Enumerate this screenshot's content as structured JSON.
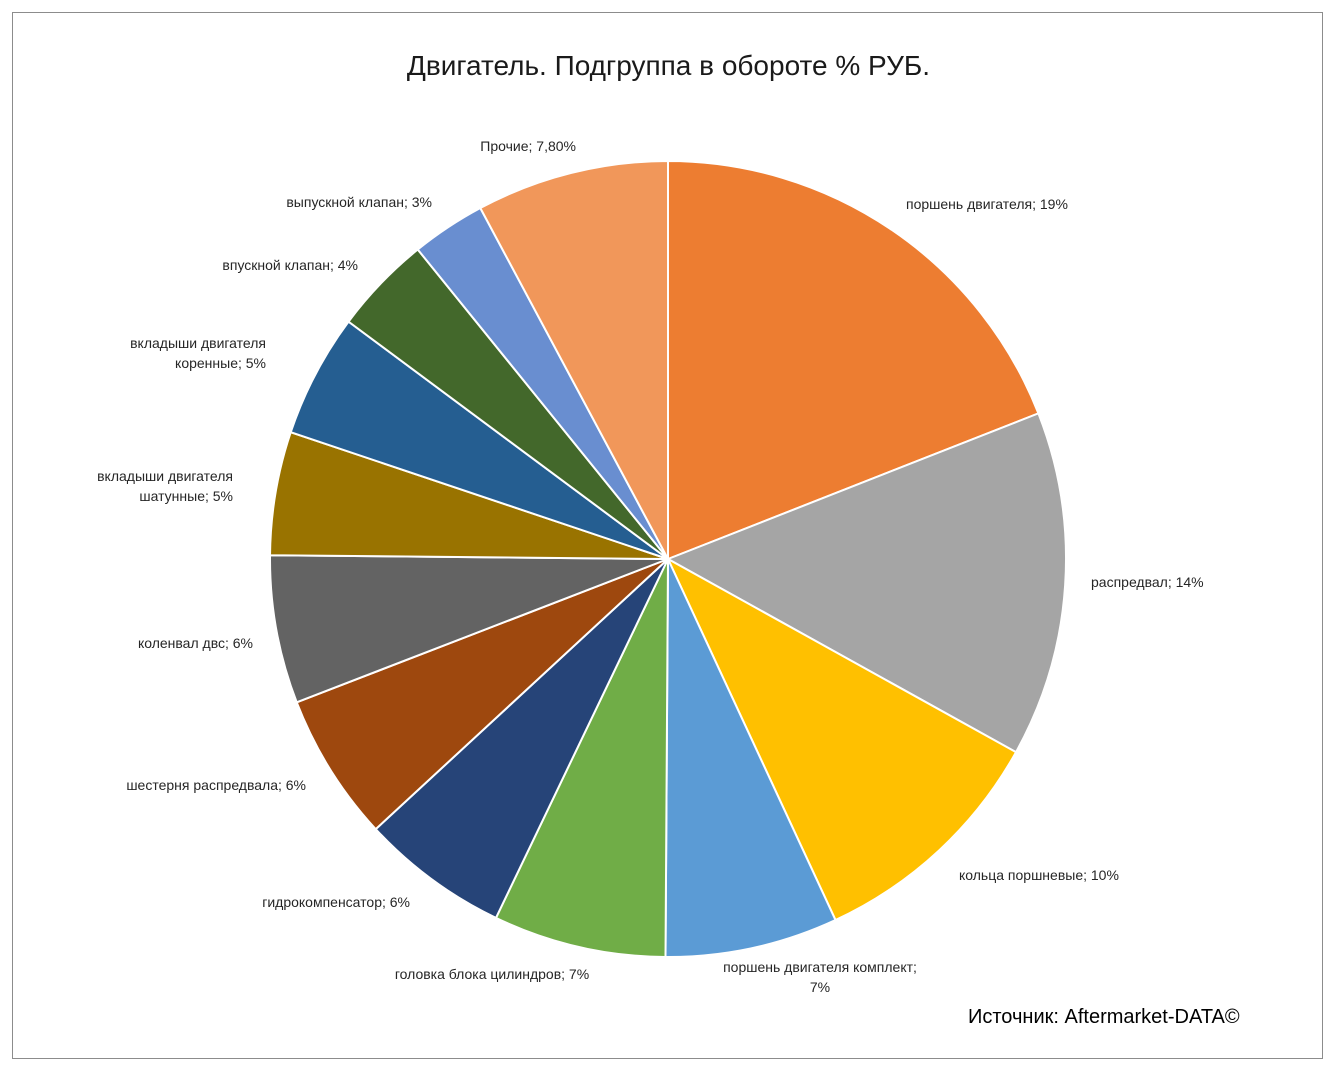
{
  "chart_data": {
    "type": "pie",
    "title": "Двигатель. Подгруппа в обороте % РУБ.",
    "source": "Источник: Aftermarket-DATA©",
    "slices": [
      {
        "name": "поршень двигателя",
        "value": 19,
        "label_lines": [
          "поршень двигателя; 19%"
        ],
        "color": "#ED7D31"
      },
      {
        "name": "распредвал",
        "value": 14,
        "label_lines": [
          "распредвал; 14%"
        ],
        "color": "#A5A5A5"
      },
      {
        "name": "кольца поршневые",
        "value": 10,
        "label_lines": [
          "кольца поршневые; 10%"
        ],
        "color": "#FFC000"
      },
      {
        "name": "поршень двигателя комплект",
        "value": 7,
        "label_lines": [
          "поршень двигателя комплект;",
          "7%"
        ],
        "color": "#5B9BD5"
      },
      {
        "name": "головка блока цилиндров",
        "value": 7,
        "label_lines": [
          "головка блока цилиндров; 7%"
        ],
        "color": "#70AD47"
      },
      {
        "name": "гидрокомпенсатор",
        "value": 6,
        "label_lines": [
          "гидрокомпенсатор; 6%"
        ],
        "color": "#264478"
      },
      {
        "name": "шестерня распредвала",
        "value": 6,
        "label_lines": [
          "шестерня распредвала; 6%"
        ],
        "color": "#9E480E"
      },
      {
        "name": "коленвал двс",
        "value": 6,
        "label_lines": [
          "коленвал двс; 6%"
        ],
        "color": "#636363"
      },
      {
        "name": "вкладыши двигателя шатунные",
        "value": 5,
        "label_lines": [
          "вкладыши двигателя",
          "шатунные; 5%"
        ],
        "color": "#997300"
      },
      {
        "name": "вкладыши двигателя коренные",
        "value": 5,
        "label_lines": [
          "вкладыши двигателя",
          "коренные; 5%"
        ],
        "color": "#255E91"
      },
      {
        "name": "впускной клапан",
        "value": 4,
        "label_lines": [
          "впускной клапан; 4%"
        ],
        "color": "#43682B"
      },
      {
        "name": "выпускной клапан",
        "value": 3,
        "label_lines": [
          "выпускной клапан; 3%"
        ],
        "color": "#698ED0"
      },
      {
        "name": "Прочие",
        "value": 7.8,
        "label_lines": [
          "Прочие; 7,80%"
        ],
        "color": "#F1975A"
      }
    ]
  }
}
